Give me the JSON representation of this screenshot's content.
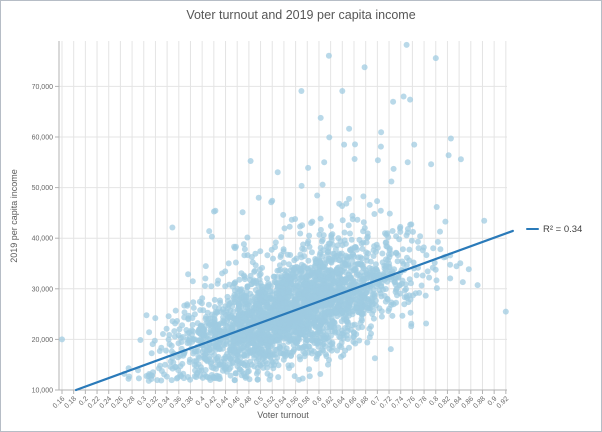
{
  "window": {
    "border_color": "#b6bdc6",
    "background": "#ffffff"
  },
  "chart_data": {
    "type": "scatter",
    "title": "Voter turnout and 2019 per capita income",
    "xlabel": "Voter turnout",
    "ylabel": "2019 per capita income",
    "grid": true,
    "gridline_color": "#e4e4e4",
    "axis_line_color": "#b3b3b3",
    "tick_label_color": "#666666",
    "title_color": "#565656",
    "xlim": [
      0.15,
      0.935
    ],
    "ylim": [
      10000,
      79000
    ],
    "x_ticks": [
      "0.16",
      "0.18",
      "0.2",
      "0.22",
      "0.24",
      "0.26",
      "0.28",
      "0.3",
      "0.32",
      "0.34",
      "0.36",
      "0.38",
      "0.4",
      "0.42",
      "0.44",
      "0.46",
      "0.48",
      "0.5",
      "0.52",
      "0.54",
      "0.56",
      "0.58",
      "0.6",
      "0.62",
      "0.64",
      "0.66",
      "0.68",
      "0.7",
      "0.72",
      "0.74",
      "0.76",
      "0.78",
      "0.8",
      "0.82",
      "0.84",
      "0.86",
      "0.88",
      "0.9",
      "0.92"
    ],
    "y_ticks": [
      "10,000",
      "20,000",
      "30,000",
      "40,000",
      "50,000",
      "60,000",
      "70,000"
    ],
    "point_color": "#9ecae1",
    "point_opacity": 0.72,
    "point_radius": 3,
    "trendline": {
      "x1": 0.184,
      "y1": 10000,
      "x2": 0.932,
      "y2": 41440,
      "color": "#2a7ab9",
      "r_squared": 0.34,
      "label": "R² = 0.34"
    },
    "legend": {
      "label": "R² = 0.34",
      "position": "right-of-plot"
    },
    "notable_points": [
      [
        0.16,
        20000
      ],
      [
        0.75,
        78200
      ],
      [
        0.8,
        75600
      ],
      [
        0.57,
        69100
      ],
      [
        0.64,
        69100
      ],
      [
        0.745,
        68000
      ],
      [
        0.756,
        67400
      ],
      [
        0.826,
        59700
      ],
      [
        0.763,
        58500
      ],
      [
        0.643,
        58500
      ],
      [
        0.706,
        58100
      ],
      [
        0.609,
        55000
      ],
      [
        0.752,
        55000
      ],
      [
        0.822,
        56400
      ],
      [
        0.701,
        55400
      ],
      [
        0.792,
        54600
      ],
      [
        0.843,
        55600
      ],
      [
        0.92,
        25500
      ]
    ],
    "cloud": {
      "note": "dense cloud of ~2800 county-level points approximated by this distribution spec",
      "seed": 7,
      "count": 2800,
      "x_mean": 0.557,
      "x_sd": 0.097,
      "x_min": 0.26,
      "x_max": 0.935,
      "trend_slope": 42032,
      "trend_intercept": 2266,
      "y_noise_sd": 4800,
      "tail_prob": 0.1,
      "tail_mean": 8000,
      "y_min": 11800,
      "y_max": 78500
    }
  }
}
